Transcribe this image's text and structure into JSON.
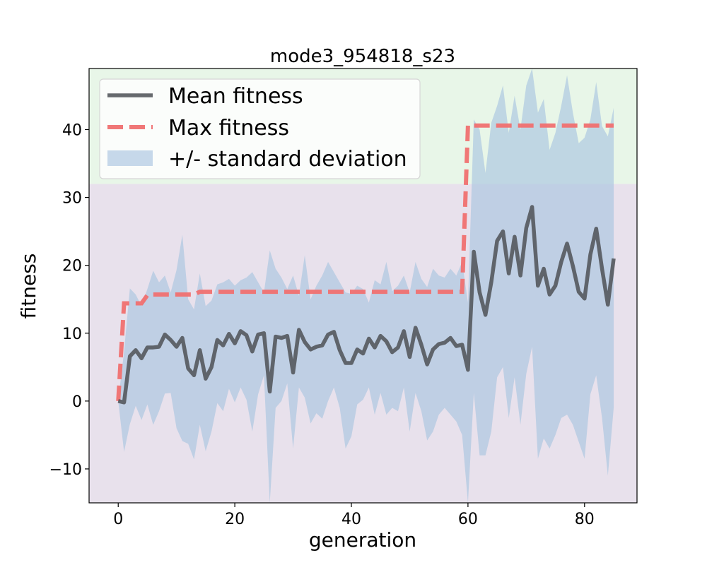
{
  "chart_data": {
    "type": "line",
    "title": "mode3_954818_s23",
    "xlabel": "generation",
    "ylabel": "fitness",
    "xlim": [
      -5,
      89
    ],
    "ylim": [
      -15,
      49
    ],
    "xticks": [
      0,
      20,
      40,
      60,
      80
    ],
    "yticks": [
      -10,
      0,
      10,
      20,
      30,
      40
    ],
    "grid": false,
    "legend_position": "top-left",
    "background_bands": [
      {
        "y_from": 32,
        "y_to": 49,
        "color": "#e8f6e8"
      },
      {
        "y_from": -15,
        "y_to": 32,
        "color": "#e8e1ec"
      }
    ],
    "x": [
      0,
      1,
      2,
      3,
      4,
      5,
      6,
      7,
      8,
      9,
      10,
      11,
      12,
      13,
      14,
      15,
      16,
      17,
      18,
      19,
      20,
      21,
      22,
      23,
      24,
      25,
      26,
      27,
      28,
      29,
      30,
      31,
      32,
      33,
      34,
      35,
      36,
      37,
      38,
      39,
      40,
      41,
      42,
      43,
      44,
      45,
      46,
      47,
      48,
      49,
      50,
      51,
      52,
      53,
      54,
      55,
      56,
      57,
      58,
      59,
      60,
      61,
      62,
      63,
      64,
      65,
      66,
      67,
      68,
      69,
      70,
      71,
      72,
      73,
      74,
      75,
      76,
      77,
      78,
      79,
      80,
      81,
      82,
      83,
      84,
      85
    ],
    "series": [
      {
        "name": "Mean fitness",
        "color": "#4d5156",
        "style": "solid",
        "values": [
          0.0,
          -0.2,
          6.6,
          7.5,
          6.3,
          7.9,
          7.9,
          8.0,
          9.8,
          9.0,
          8.0,
          9.3,
          4.8,
          3.8,
          7.5,
          3.3,
          5.0,
          9.0,
          8.2,
          9.9,
          8.5,
          10.3,
          9.7,
          7.3,
          9.8,
          10.0,
          1.4,
          9.5,
          9.3,
          9.6,
          4.2,
          10.5,
          8.7,
          7.6,
          8.0,
          8.2,
          9.8,
          10.2,
          7.5,
          5.6,
          5.6,
          7.6,
          7.0,
          9.2,
          7.9,
          9.6,
          8.8,
          7.2,
          7.9,
          10.3,
          6.5,
          10.8,
          8.3,
          5.4,
          7.6,
          8.4,
          8.6,
          9.3,
          8.1,
          8.3,
          4.6,
          22.0,
          16.0,
          12.7,
          17.5,
          23.6,
          25.0,
          18.8,
          24.2,
          18.5,
          25.5,
          28.6,
          17.0,
          19.5,
          15.7,
          17.0,
          20.5,
          23.2,
          19.9,
          16.1,
          15.1,
          21.6,
          25.4,
          19.5,
          14.2,
          21.0
        ]
      },
      {
        "name": "Max fitness",
        "color": "#f07070",
        "style": "dashed",
        "values": [
          0.0,
          14.4,
          14.4,
          14.4,
          14.4,
          15.6,
          15.7,
          15.7,
          15.7,
          15.7,
          15.7,
          15.7,
          15.7,
          15.7,
          16.1,
          16.1,
          16.1,
          16.1,
          16.1,
          16.1,
          16.1,
          16.1,
          16.1,
          16.1,
          16.1,
          16.1,
          16.1,
          16.1,
          16.1,
          16.1,
          16.1,
          16.1,
          16.1,
          16.1,
          16.1,
          16.1,
          16.1,
          16.1,
          16.1,
          16.1,
          16.1,
          16.1,
          16.1,
          16.1,
          16.1,
          16.1,
          16.1,
          16.1,
          16.1,
          16.1,
          16.1,
          16.1,
          16.1,
          16.1,
          16.1,
          16.1,
          16.1,
          16.1,
          16.1,
          16.1,
          40.6,
          40.6,
          40.6,
          40.6,
          40.6,
          40.6,
          40.6,
          40.6,
          40.6,
          40.6,
          40.6,
          40.6,
          40.6,
          40.6,
          40.6,
          40.6,
          40.6,
          40.6,
          40.6,
          40.6,
          40.6,
          40.6,
          40.6,
          40.6,
          40.6,
          40.6
        ]
      }
    ],
    "band": {
      "name": "+/- standard deviation",
      "color": "#a9c4e0",
      "upper": [
        0.0,
        7.3,
        16.6,
        15.7,
        14.0,
        16.5,
        19.2,
        17.5,
        18.5,
        16.0,
        19.3,
        24.5,
        15.0,
        13.5,
        18.8,
        14.0,
        14.8,
        17.2,
        17.5,
        18.0,
        17.0,
        17.8,
        18.2,
        19.0,
        17.5,
        16.0,
        22.2,
        19.5,
        18.2,
        16.5,
        18.5,
        15.5,
        21.5,
        15.0,
        17.0,
        18.5,
        20.5,
        19.0,
        17.5,
        16.0,
        15.8,
        17.0,
        16.5,
        14.5,
        17.8,
        17.2,
        20.5,
        16.2,
        17.0,
        18.5,
        16.0,
        20.5,
        18.0,
        16.8,
        19.5,
        18.5,
        18.2,
        19.5,
        18.5,
        20.5,
        14.5,
        41.5,
        40.0,
        33.6,
        41.0,
        43.5,
        46.5,
        39.5,
        45.0,
        40.0,
        46.5,
        49.0,
        42.5,
        44.5,
        37.0,
        39.5,
        43.5,
        48.0,
        42.5,
        38.0,
        38.8,
        41.5,
        47.0,
        40.5,
        39.0,
        43.2
      ],
      "lower": [
        0.0,
        -7.5,
        -3.4,
        -0.7,
        -2.8,
        -0.5,
        -3.5,
        -1.5,
        1.1,
        1.2,
        -4.0,
        -5.9,
        -6.3,
        -8.6,
        -3.5,
        -7.4,
        -4.5,
        -0.3,
        -1.5,
        1.8,
        -0.2,
        2.0,
        0.2,
        -4.5,
        1.0,
        3.8,
        -15.0,
        -1.0,
        0.0,
        2.6,
        -7.0,
        2.0,
        0.5,
        -3.3,
        -1.8,
        -2.6,
        0.0,
        2.0,
        -1.0,
        -7.0,
        -5.2,
        -0.5,
        0.2,
        2.0,
        -2.0,
        1.2,
        -2.0,
        -1.0,
        -1.5,
        2.0,
        -4.5,
        1.2,
        -1.5,
        -5.8,
        -4.5,
        -2.0,
        -1.0,
        -2.0,
        -3.0,
        -5.0,
        -15.0,
        1.2,
        -8.0,
        -8.0,
        -4.5,
        3.5,
        5.0,
        -2.5,
        3.5,
        -3.5,
        4.0,
        8.0,
        -8.5,
        -5.5,
        -7.0,
        -5.0,
        -2.5,
        -2.0,
        -3.5,
        -6.0,
        -8.5,
        1.0,
        3.8,
        -2.5,
        -11.0,
        -1.0
      ]
    }
  }
}
